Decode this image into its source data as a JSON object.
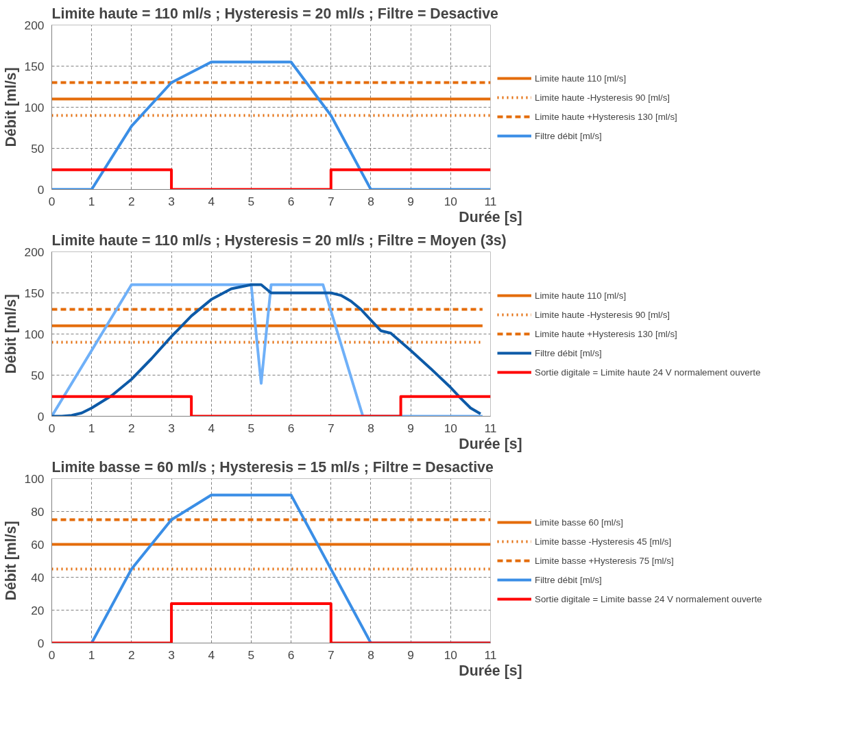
{
  "chart_data": [
    {
      "type": "line",
      "title": "Limite haute = 110 ml/s ; Hysteresis = 20 ml/s ; Filtre = Desactive",
      "ylabel": "Débit [ml/s]",
      "xlabel": "Durée [s]",
      "xlim": [
        0,
        11
      ],
      "xticks": [
        0,
        1,
        2,
        3,
        4,
        5,
        6,
        7,
        8,
        9,
        10,
        11
      ],
      "ylim": [
        0,
        200
      ],
      "yticks": [
        0,
        50,
        100,
        150,
        200
      ],
      "grid": true,
      "legend": "right",
      "series": [
        {
          "name": "Limite haute 110 [ml/s]",
          "color": "#e46c0a",
          "line_style": "solid",
          "x": [
            0,
            11
          ],
          "values": [
            110,
            110
          ]
        },
        {
          "name": "Limite haute -Hysteresis 90 [ml/s]",
          "color": "#e46c0a",
          "line_style": "dotted",
          "x": [
            0,
            11
          ],
          "values": [
            90,
            90
          ]
        },
        {
          "name": "Limite haute +Hysteresis 130 [ml/s]",
          "color": "#e46c0a",
          "line_style": "dashed",
          "x": [
            0,
            11
          ],
          "values": [
            130,
            130
          ]
        },
        {
          "name": "Filtre débit [ml/s]",
          "color": "#3a8ee6",
          "line_style": "solid",
          "x": [
            0,
            1,
            2,
            3,
            4,
            6,
            7,
            8,
            11
          ],
          "values": [
            0,
            0,
            77,
            130,
            155,
            155,
            90,
            0,
            0
          ]
        },
        {
          "color": "#ff0000",
          "line_style": "solid",
          "x": [
            0,
            3,
            3,
            7,
            7,
            11
          ],
          "values": [
            24,
            24,
            0,
            0,
            24,
            24
          ]
        }
      ]
    },
    {
      "type": "line",
      "title": "Limite haute = 110 ml/s ; Hysteresis = 20 ml/s ; Filtre = Moyen (3s)",
      "ylabel": "Débit [ml/s]",
      "xlabel": "Durée [s]",
      "xlim": [
        0,
        11
      ],
      "xticks": [
        0,
        1,
        2,
        3,
        4,
        5,
        6,
        7,
        8,
        9,
        10,
        11
      ],
      "ylim": [
        0,
        200
      ],
      "yticks": [
        0,
        50,
        100,
        150,
        200
      ],
      "grid": true,
      "legend": "right",
      "series": [
        {
          "name": "Limite haute 110 [ml/s]",
          "color": "#e46c0a",
          "line_style": "solid",
          "x": [
            0,
            10.8
          ],
          "values": [
            110,
            110
          ]
        },
        {
          "name": "Limite haute -Hysteresis 90 [ml/s]",
          "color": "#e46c0a",
          "line_style": "dotted",
          "x": [
            0,
            10.8
          ],
          "values": [
            90,
            90
          ]
        },
        {
          "name": "Limite haute +Hysteresis 130 [ml/s]",
          "color": "#e46c0a",
          "line_style": "dashed",
          "x": [
            0,
            10.8
          ],
          "values": [
            130,
            130
          ]
        },
        {
          "color": "#6fb0f8",
          "line_style": "solid",
          "x": [
            0,
            2,
            5,
            5.25,
            5.5,
            6.8,
            7.8,
            10.8
          ],
          "values": [
            0,
            160,
            160,
            40,
            160,
            160,
            0,
            0
          ]
        },
        {
          "name": "Filtre débit [ml/s]",
          "color": "#0d5aa7",
          "line_style": "solid",
          "x": [
            0,
            0.25,
            0.5,
            0.75,
            1,
            1.5,
            2,
            2.5,
            3,
            3.5,
            4,
            4.5,
            5,
            5.25,
            5.5,
            6,
            6.5,
            7,
            7.25,
            7.5,
            7.75,
            8,
            8.25,
            8.5,
            9,
            9.5,
            10,
            10.25,
            10.5,
            10.75
          ],
          "values": [
            0,
            0,
            1,
            4,
            10,
            25,
            45,
            70,
            97,
            122,
            142,
            155,
            160,
            160,
            150,
            150,
            150,
            150,
            147,
            140,
            130,
            117,
            104,
            101,
            80,
            58,
            35,
            22,
            10,
            3
          ]
        },
        {
          "name": "Sortie digitale = Limite haute 24 V normalement ouverte",
          "color": "#ff0000",
          "line_style": "solid",
          "x": [
            0,
            3.5,
            3.5,
            8.75,
            8.75,
            11
          ],
          "values": [
            24,
            24,
            0,
            0,
            24,
            24
          ]
        }
      ]
    },
    {
      "type": "line",
      "title": "Limite basse = 60 ml/s ; Hysteresis = 15 ml/s ; Filtre = Desactive",
      "ylabel": "Débit [ml/s]",
      "xlabel": "Durée [s]",
      "xlim": [
        0,
        11
      ],
      "xticks": [
        0,
        1,
        2,
        3,
        4,
        5,
        6,
        7,
        8,
        9,
        10,
        11
      ],
      "ylim": [
        0,
        100
      ],
      "yticks": [
        0,
        20,
        40,
        60,
        80,
        100
      ],
      "grid": true,
      "legend": "right",
      "series": [
        {
          "name": "Limite basse 60 [ml/s]",
          "color": "#e46c0a",
          "line_style": "solid",
          "x": [
            0,
            11
          ],
          "values": [
            60,
            60
          ]
        },
        {
          "name": "Limite basse -Hysteresis 45 [ml/s]",
          "color": "#e46c0a",
          "line_style": "dotted",
          "x": [
            0,
            11
          ],
          "values": [
            45,
            45
          ]
        },
        {
          "name": "Limite basse +Hysteresis 75 [ml/s]",
          "color": "#e46c0a",
          "line_style": "dashed",
          "x": [
            0,
            11
          ],
          "values": [
            75,
            75
          ]
        },
        {
          "name": "Filtre débit [ml/s]",
          "color": "#3a8ee6",
          "line_style": "solid",
          "x": [
            1,
            2,
            3,
            4,
            6,
            7,
            8,
            11
          ],
          "values": [
            0,
            45,
            75,
            90,
            90,
            45,
            0,
            0
          ]
        },
        {
          "name": "Sortie digitale = Limite basse 24 V normalement ouverte",
          "color": "#ff0000",
          "line_style": "solid",
          "x": [
            0,
            3,
            3,
            7,
            7,
            11
          ],
          "values": [
            0,
            0,
            24,
            24,
            0,
            0
          ]
        }
      ]
    }
  ]
}
